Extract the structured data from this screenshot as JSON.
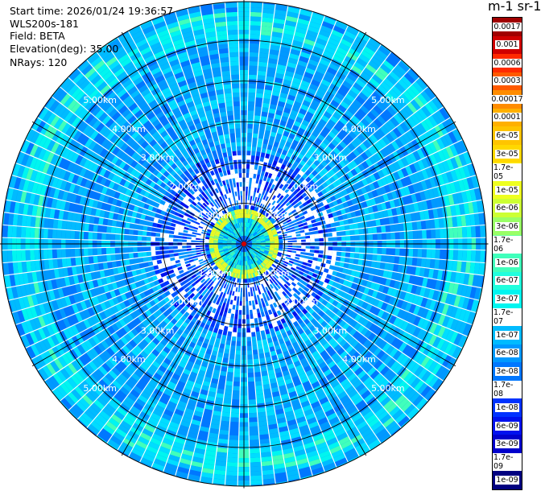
{
  "header": {
    "start_time": "Start time: 2026/01/24 19:36:57",
    "instrument": "WLS200s-181",
    "field": "Field: BETA",
    "elevation": "Elevation(deg): 35.00",
    "nrays": "NRays: 120"
  },
  "colorbar": {
    "title": "m-1 sr-1",
    "labels": [
      "0.0017",
      "0.001",
      "0.0006",
      "0.0003",
      "0.00017",
      "0.0001",
      "6e-05",
      "3e-05",
      "1.7e-05",
      "1e-05",
      "6e-06",
      "3e-06",
      "1.7e-06",
      "1e-06",
      "6e-07",
      "3e-07",
      "1.7e-07",
      "1e-07",
      "6e-08",
      "3e-08",
      "1.7e-08",
      "1e-08",
      "6e-09",
      "3e-09",
      "1.7e-09",
      "1e-09"
    ],
    "colors": [
      "#a00000",
      "#d00000",
      "#ff2a00",
      "#ff5a00",
      "#ff8c00",
      "#ffb000",
      "#ffc400",
      "#ffd800",
      "#ffee00",
      "#eeff20",
      "#ccff33",
      "#99ff66",
      "#66ff99",
      "#40ffbb",
      "#20ffdd",
      "#00f5f0",
      "#00ddff",
      "#00bbff",
      "#0099ff",
      "#0077ff",
      "#0055ff",
      "#0033ff",
      "#0011ee",
      "#0000cc",
      "#0000aa",
      "#000080"
    ]
  },
  "chart_data": {
    "type": "heatmap",
    "projection": "polar PPI",
    "field": "BETA",
    "elevation_deg": 35.0,
    "n_rays": 120,
    "range_rings_km": [
      1,
      2,
      3,
      4,
      5
    ],
    "ring_labels": [
      "1.00km",
      "2.00km",
      "3.00km",
      "4.00km",
      "5.00km"
    ],
    "max_range_km": 5.95,
    "spoke_interval_deg": 30,
    "dominant_value_range": [
      "3e-08",
      "1e-07"
    ],
    "near_field_value": "1.7e-06",
    "near_field_radius_km": [
      0.6,
      0.85
    ],
    "outer_band_radius_km": [
      5.0,
      5.7
    ],
    "outer_band_value": "1.7e-07",
    "grid": true
  }
}
